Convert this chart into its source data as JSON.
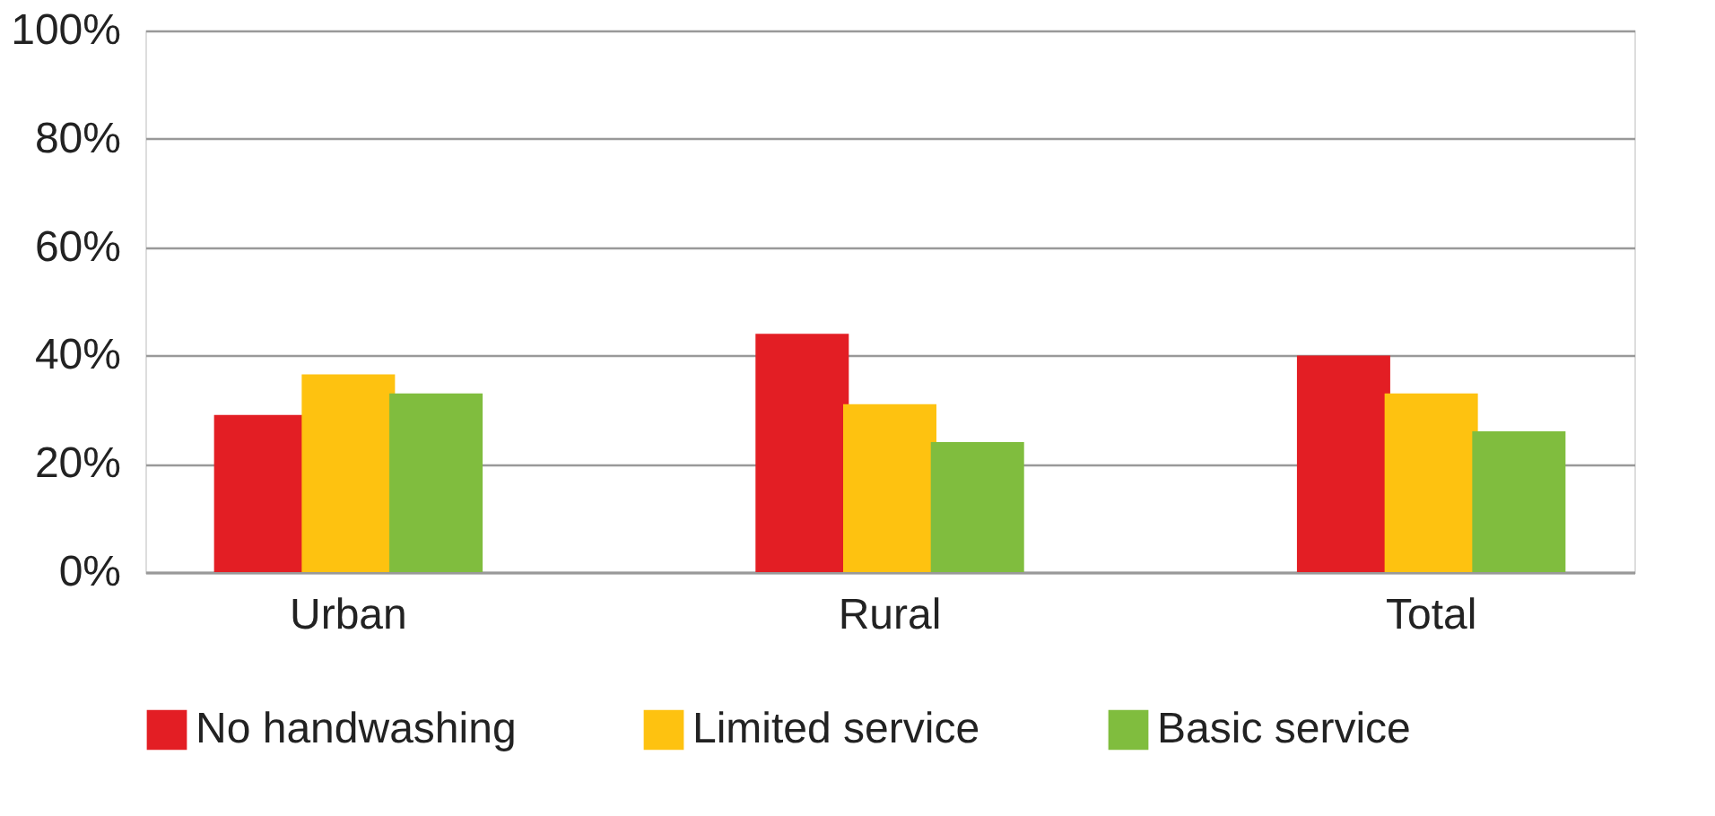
{
  "chart_data": {
    "type": "bar",
    "categories": [
      "Urban",
      "Rural",
      "Total"
    ],
    "series": [
      {
        "name": "No handwashing",
        "color": "#e31e24",
        "values": [
          29,
          44,
          40
        ]
      },
      {
        "name": "Limited service",
        "color": "#fec210",
        "values": [
          36.5,
          31,
          33
        ]
      },
      {
        "name": "Basic service",
        "color": "#80bd3e",
        "values": [
          33,
          24,
          26
        ]
      }
    ],
    "ylim": [
      0,
      100
    ],
    "yticks": [
      {
        "value": 0,
        "label": "0%"
      },
      {
        "value": 20,
        "label": "20%"
      },
      {
        "value": 40,
        "label": "40%"
      },
      {
        "value": 60,
        "label": "60%"
      },
      {
        "value": 80,
        "label": "80%"
      },
      {
        "value": 100,
        "label": "100%"
      }
    ],
    "grid": "y",
    "legend": "bottom"
  }
}
